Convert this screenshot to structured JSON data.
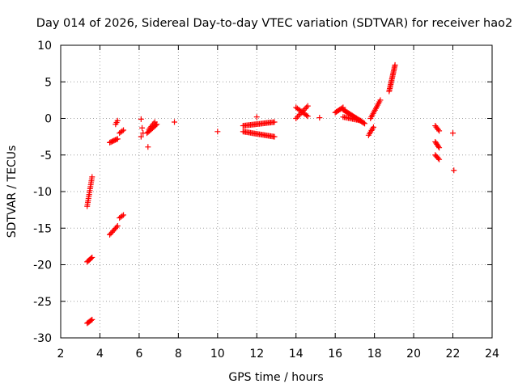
{
  "chart_data": {
    "type": "scatter",
    "title": "Day 014 of 2026, Sidereal Day-to-day VTEC variation (SDTVAR) for receiver hao2",
    "xlabel": "GPS time / hours",
    "ylabel": "SDTVAR / TECUs",
    "xlim": [
      2,
      24
    ],
    "ylim": [
      -30,
      10
    ],
    "xticks": [
      2,
      4,
      6,
      8,
      10,
      12,
      14,
      16,
      18,
      20,
      22,
      24
    ],
    "yticks": [
      -30,
      -25,
      -20,
      -15,
      -10,
      -5,
      0,
      5,
      10
    ],
    "grid": true,
    "marker": "plus",
    "color": "#ff0000",
    "series": [
      {
        "name": "SDTVAR",
        "segments": [
          {
            "x0": 3.35,
            "y0": -12.0,
            "x1": 3.6,
            "y1": -8.0,
            "n": 16
          },
          {
            "x0": 3.35,
            "y0": -19.6,
            "x1": 3.6,
            "y1": -19.0,
            "n": 6
          },
          {
            "x0": 3.35,
            "y0": -28.0,
            "x1": 3.6,
            "y1": -27.5,
            "n": 6
          },
          {
            "x0": 4.5,
            "y0": -15.9,
            "x1": 4.9,
            "y1": -14.7,
            "n": 8
          },
          {
            "x0": 5.0,
            "y0": -13.6,
            "x1": 5.2,
            "y1": -13.2,
            "n": 4
          },
          {
            "x0": 4.5,
            "y0": -3.3,
            "x1": 4.9,
            "y1": -2.8,
            "n": 8
          },
          {
            "x0": 4.8,
            "y0": -0.8,
            "x1": 4.9,
            "y1": -0.3,
            "n": 3
          },
          {
            "x0": 5.0,
            "y0": -2.0,
            "x1": 5.2,
            "y1": -1.6,
            "n": 4
          },
          {
            "x0": 6.4,
            "y0": -2.0,
            "x1": 6.9,
            "y1": -0.8,
            "n": 10
          },
          {
            "x0": 6.5,
            "y0": -1.5,
            "x1": 6.8,
            "y1": -0.5,
            "n": 6
          },
          {
            "x0": 11.3,
            "y0": -1.0,
            "x1": 12.9,
            "y1": -0.5,
            "n": 26
          },
          {
            "x0": 11.3,
            "y0": -1.8,
            "x1": 12.9,
            "y1": -2.5,
            "n": 26
          },
          {
            "x0": 14.0,
            "y0": 0.0,
            "x1": 14.6,
            "y1": 1.7,
            "n": 10
          },
          {
            "x0": 14.0,
            "y0": 1.5,
            "x1": 14.6,
            "y1": 0.3,
            "n": 10
          },
          {
            "x0": 16.0,
            "y0": 0.8,
            "x1": 16.4,
            "y1": 1.5,
            "n": 8
          },
          {
            "x0": 16.4,
            "y0": 1.2,
            "x1": 17.5,
            "y1": -0.7,
            "n": 22
          },
          {
            "x0": 16.4,
            "y0": 0.2,
            "x1": 17.3,
            "y1": -0.3,
            "n": 14
          },
          {
            "x0": 17.7,
            "y0": -2.3,
            "x1": 17.95,
            "y1": -1.2,
            "n": 6
          },
          {
            "x0": 17.8,
            "y0": 0.0,
            "x1": 18.3,
            "y1": 2.5,
            "n": 12
          },
          {
            "x0": 18.75,
            "y0": 3.7,
            "x1": 19.05,
            "y1": 7.3,
            "n": 20
          },
          {
            "x0": 21.1,
            "y0": -1.0,
            "x1": 21.3,
            "y1": -1.7,
            "n": 5
          },
          {
            "x0": 21.1,
            "y0": -3.2,
            "x1": 21.3,
            "y1": -4.0,
            "n": 6
          },
          {
            "x0": 21.1,
            "y0": -5.0,
            "x1": 21.3,
            "y1": -5.6,
            "n": 5
          }
        ],
        "points": [
          [
            6.1,
            -0.1
          ],
          [
            6.15,
            -1.3
          ],
          [
            6.2,
            -2.0
          ],
          [
            6.1,
            -2.5
          ],
          [
            6.45,
            -3.9
          ],
          [
            7.8,
            -0.5
          ],
          [
            10.0,
            -1.8
          ],
          [
            12.0,
            0.2
          ],
          [
            15.2,
            0.1
          ],
          [
            22.0,
            -2.0
          ],
          [
            22.05,
            -7.1
          ]
        ]
      }
    ]
  }
}
